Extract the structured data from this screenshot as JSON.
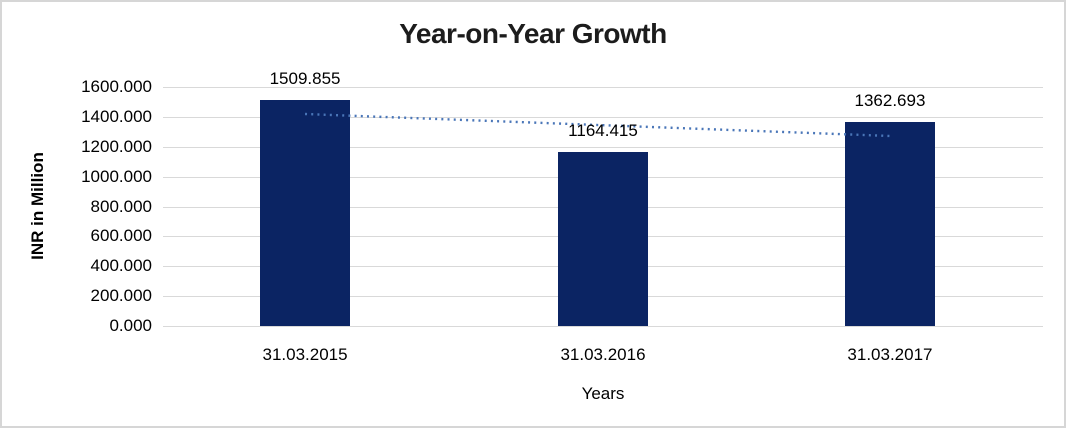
{
  "chart_data": {
    "type": "bar",
    "title": "Year-on-Year Growth",
    "categories": [
      "31.03.2015",
      "31.03.2016",
      "31.03.2017"
    ],
    "series": [
      {
        "name": "INR in Million",
        "values": [
          1509.855,
          1164.415,
          1362.693
        ]
      }
    ],
    "data_labels": [
      "1509.855",
      "1164.415",
      "1362.693"
    ],
    "xlabel": "Years",
    "ylabel": "INR in Million",
    "ylim": [
      0,
      1600
    ],
    "ytick_step": 200,
    "ytick_labels": [
      "0.000",
      "200.000",
      "400.000",
      "600.000",
      "800.000",
      "1000.000",
      "1200.000",
      "1400.000",
      "1600.000"
    ],
    "grid": true,
    "legend": "none",
    "trendline": {
      "type": "linear",
      "style": "dotted"
    },
    "colors": {
      "bar": "#0b2463",
      "trendline": "#4a76b8",
      "gridline": "#d9d9d9",
      "text": "#000000",
      "title_text": "#1c1c1c",
      "frame_border": "#d6d6d6"
    }
  }
}
